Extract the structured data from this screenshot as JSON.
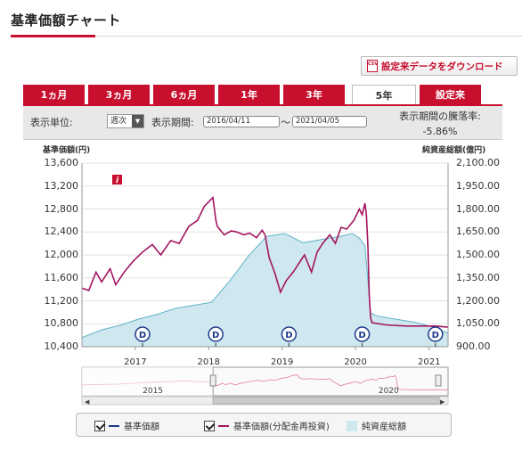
{
  "page": {
    "title": "基準価額チャート",
    "download_label": "設定来データをダウンロード",
    "download_icon_text": "CSV"
  },
  "tabs": [
    {
      "label": "1ヵ月",
      "active": false
    },
    {
      "label": "3ヵ月",
      "active": false
    },
    {
      "label": "6ヵ月",
      "active": false
    },
    {
      "label": "1年",
      "active": false
    },
    {
      "label": "3年",
      "active": false
    },
    {
      "label": "5年",
      "active": true
    },
    {
      "label": "設定来",
      "active": false
    }
  ],
  "controls": {
    "unit_label": "表示単位:",
    "unit_value": "週次",
    "period_label": "表示期間:",
    "period_start": "2016/04/11",
    "period_separator": "〜",
    "period_end": "2021/04/05",
    "performance_label": "表示期間の騰落率:",
    "performance_value": "-5.86%"
  },
  "legend": {
    "nav_label": "基準価額",
    "reinvested_label": "基準価額(分配金再投資)",
    "aum_label": "純資産総額"
  },
  "colors": {
    "accent": "#c8102e",
    "nav_line": "#1a3a8a",
    "reinvested_line": "#a3145f",
    "aum_fill": "#cfe7ef",
    "aum_line": "#5fb3c8"
  },
  "chart_data": {
    "type": "line",
    "title": "",
    "ylabel": "基準価額(円)",
    "y2label": "純資産総額(億円)",
    "ylim": [
      10400,
      13600
    ],
    "y_ticks": [
      "13,600",
      "13,200",
      "12,800",
      "12,400",
      "12,000",
      "11,600",
      "11,200",
      "10,800",
      "10,400"
    ],
    "y2lim": [
      900,
      2100
    ],
    "y2_ticks": [
      "2,100.00",
      "1,950.00",
      "1,800.00",
      "1,650.00",
      "1,500.00",
      "1,350.00",
      "1,200.00",
      "1,050.00",
      "900.00"
    ],
    "x_range": [
      "2016-04-11",
      "2021-04-05"
    ],
    "x_ticks": [
      "2017",
      "2018",
      "2019",
      "2020",
      "2021"
    ],
    "navigator_ticks": [
      "2015",
      "2020"
    ],
    "grid": true,
    "series": [
      {
        "name": "基準価額(分配金再投資)",
        "axis": "left",
        "x": [
          "2016-04-11",
          "2016-05-15",
          "2016-06-20",
          "2016-07-18",
          "2016-08-29",
          "2016-09-26",
          "2016-11-07",
          "2016-12-19",
          "2017-02-06",
          "2017-03-27",
          "2017-05-08",
          "2017-06-26",
          "2017-08-07",
          "2017-09-25",
          "2017-11-06",
          "2017-12-11",
          "2018-01-22",
          "2018-02-05",
          "2018-02-12",
          "2018-03-19",
          "2018-04-23",
          "2018-05-21",
          "2018-06-25",
          "2018-07-23",
          "2018-08-27",
          "2018-09-24",
          "2018-10-08",
          "2018-10-29",
          "2018-11-26",
          "2018-12-24",
          "2019-01-21",
          "2019-02-25",
          "2019-03-25",
          "2019-04-22",
          "2019-05-27",
          "2019-06-24",
          "2019-07-22",
          "2019-08-26",
          "2019-09-23",
          "2019-10-21",
          "2019-11-18",
          "2019-12-23",
          "2020-01-20",
          "2020-02-03",
          "2020-02-17",
          "2020-02-24",
          "2020-03-02",
          "2020-03-09",
          "2020-03-16",
          "2020-03-23",
          "2020-06-01",
          "2020-09-07",
          "2020-12-07",
          "2021-02-01",
          "2021-04-05"
        ],
        "y": [
          11420,
          11380,
          11700,
          11530,
          11760,
          11480,
          11700,
          11880,
          12050,
          12180,
          12000,
          12250,
          12200,
          12500,
          12600,
          12850,
          13000,
          12620,
          12500,
          12350,
          12420,
          12400,
          12350,
          12380,
          12300,
          12430,
          12350,
          11950,
          11680,
          11350,
          11550,
          11700,
          11850,
          12000,
          11700,
          12050,
          12200,
          12350,
          12200,
          12480,
          12450,
          12600,
          12800,
          12700,
          12900,
          12700,
          12200,
          11300,
          10900,
          10820,
          10780,
          10760,
          10760,
          10760,
          10740
        ]
      },
      {
        "name": "純資産総額",
        "axis": "right",
        "x": [
          "2016-04-11",
          "2016-07-18",
          "2016-10-17",
          "2017-01-16",
          "2017-04-17",
          "2017-07-17",
          "2017-10-16",
          "2018-01-15",
          "2018-04-16",
          "2018-07-16",
          "2018-10-15",
          "2019-01-14",
          "2019-04-15",
          "2019-07-15",
          "2019-10-14",
          "2019-12-16",
          "2020-01-20",
          "2020-02-17",
          "2020-03-16",
          "2020-04-20",
          "2020-07-20",
          "2020-10-19",
          "2021-01-18",
          "2021-04-05"
        ],
        "y": [
          960,
          1010,
          1040,
          1080,
          1110,
          1150,
          1170,
          1190,
          1330,
          1490,
          1620,
          1640,
          1580,
          1600,
          1620,
          1640,
          1610,
          1560,
          1120,
          1100,
          1080,
          1060,
          1030,
          990
        ]
      }
    ],
    "markers": [
      {
        "label": "D",
        "x": "2017-02-06"
      },
      {
        "label": "D",
        "x": "2018-02-05"
      },
      {
        "label": "D",
        "x": "2019-02-04"
      },
      {
        "label": "D",
        "x": "2020-02-03"
      },
      {
        "label": "D",
        "x": "2021-02-01"
      }
    ],
    "info_label": "i"
  }
}
